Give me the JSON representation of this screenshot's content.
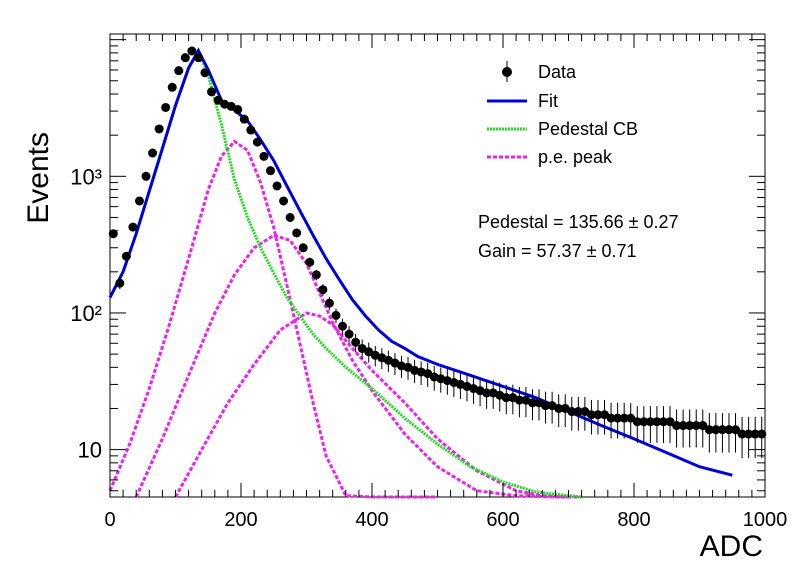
{
  "chart_data": {
    "type": "scatter",
    "xlabel": "ADC",
    "ylabel": "Events",
    "xlim": [
      0,
      1000
    ],
    "ylim": [
      4.5,
      11000
    ],
    "yscale": "log",
    "x_ticks": [
      "0",
      "200",
      "400",
      "600",
      "800",
      "1000"
    ],
    "y_ticks": [
      {
        "value": 10,
        "label": "10"
      },
      {
        "value": 100,
        "label": "10²"
      },
      {
        "value": 1000,
        "label": "10³"
      }
    ],
    "legend": {
      "placement": "top-right",
      "entries": [
        {
          "label": "Data",
          "style": "marker",
          "color": "#000000"
        },
        {
          "label": "Fit",
          "style": "solid",
          "color": "#0000dd"
        },
        {
          "label": "Pedestal CB",
          "style": "dotted",
          "color": "#22dd22"
        },
        {
          "label": "p.e. peak",
          "style": "dashed",
          "color": "#ee22ee"
        }
      ]
    },
    "annotations": [
      "Pedestal = 135.66 ± 0.27",
      "Gain = 57.37 ± 0.71"
    ],
    "data": {
      "x": [
        5,
        15,
        25,
        35,
        45,
        55,
        65,
        75,
        85,
        95,
        105,
        115,
        125,
        135,
        145,
        155,
        165,
        175,
        185,
        195,
        205,
        215,
        225,
        235,
        245,
        255,
        265,
        275,
        285,
        295,
        305,
        315,
        325,
        335,
        345,
        355,
        365,
        375,
        385,
        395,
        405,
        415,
        425,
        435,
        445,
        455,
        465,
        475,
        485,
        495,
        505,
        515,
        525,
        535,
        545,
        555,
        565,
        575,
        585,
        595,
        605,
        615,
        625,
        635,
        645,
        655,
        665,
        675,
        685,
        695,
        705,
        715,
        725,
        735,
        745,
        755,
        765,
        775,
        785,
        795,
        805,
        815,
        825,
        835,
        845,
        855,
        865,
        875,
        885,
        895,
        905,
        915,
        925,
        935,
        945,
        955,
        965,
        975,
        985,
        995
      ],
      "y": [
        380,
        165,
        260,
        425,
        660,
        1000,
        1480,
        2220,
        3190,
        4480,
        5930,
        7380,
        8260,
        7380,
        5730,
        4150,
        3600,
        3370,
        3250,
        3080,
        2620,
        2180,
        1780,
        1400,
        1100,
        850,
        660,
        500,
        385,
        300,
        235,
        190,
        148,
        118,
        96,
        80,
        70,
        61,
        55,
        52,
        49,
        47,
        45,
        43,
        41,
        40,
        38,
        37,
        36,
        34,
        33,
        32,
        31,
        30,
        29,
        28,
        27,
        26,
        26,
        25,
        24,
        24,
        23,
        23,
        22,
        22,
        21,
        21,
        20,
        20,
        19,
        19,
        19,
        18,
        18,
        18,
        17,
        17,
        17,
        17,
        16,
        16,
        16,
        16,
        16,
        16,
        15,
        15,
        15,
        15,
        15,
        14,
        14,
        14,
        14,
        14,
        13,
        13,
        13,
        13
      ],
      "err_low": [
        12,
        12,
        12,
        12,
        12,
        12,
        12,
        12,
        12,
        12,
        12,
        12,
        12,
        12,
        12,
        12,
        12,
        12,
        12,
        12,
        12,
        12,
        12,
        12,
        12,
        12,
        12,
        12,
        12,
        12,
        12,
        12,
        12,
        12,
        12,
        12,
        12,
        12,
        12,
        12,
        12,
        12,
        12,
        12,
        12,
        12,
        12,
        12,
        12,
        12,
        12,
        12,
        12,
        12,
        12,
        12,
        12,
        12,
        12,
        12,
        12,
        12,
        12,
        12,
        12,
        12,
        12,
        12,
        12,
        12,
        12,
        12,
        12,
        12,
        12,
        12,
        12,
        12,
        12,
        12,
        12,
        12,
        12,
        12,
        12,
        12,
        12,
        12,
        12,
        12,
        12,
        12,
        12,
        12,
        12,
        12,
        12,
        12,
        12,
        12
      ]
    },
    "fit_curve": {
      "x": [
        0,
        20,
        40,
        60,
        80,
        100,
        120,
        135,
        150,
        170,
        190,
        210,
        230,
        250,
        270,
        290,
        310,
        330,
        350,
        370,
        390,
        410,
        430,
        450,
        470,
        500,
        550,
        600,
        650,
        700,
        750,
        800,
        850,
        900,
        950
      ],
      "y": [
        130,
        200,
        380,
        780,
        1600,
        3300,
        6200,
        8300,
        6000,
        3600,
        3050,
        2550,
        1850,
        1300,
        850,
        560,
        370,
        250,
        175,
        125,
        95,
        75,
        62,
        55,
        48,
        42,
        35,
        29,
        24,
        19,
        15,
        12,
        9.5,
        7.5,
        6.5
      ]
    },
    "pedestal_curve": {
      "x": [
        0,
        20,
        40,
        60,
        80,
        100,
        120,
        135,
        150,
        170,
        190,
        210,
        230,
        250,
        270,
        290,
        310,
        330,
        360,
        400,
        450,
        500,
        550,
        600,
        650,
        700,
        720
      ],
      "y": [
        130,
        200,
        380,
        780,
        1600,
        3300,
        6200,
        8300,
        5500,
        2400,
        950,
        500,
        300,
        195,
        130,
        95,
        70,
        55,
        40,
        28,
        17,
        11,
        7.5,
        5.8,
        4.9,
        4.6,
        4.5
      ]
    },
    "pe_peaks": [
      {
        "x": [
          0,
          30,
          60,
          90,
          120,
          150,
          170,
          190,
          210,
          230,
          250,
          270,
          290,
          310,
          330,
          360,
          400,
          450,
          500
        ],
        "y": [
          5,
          11,
          28,
          80,
          250,
          800,
          1400,
          1800,
          1550,
          900,
          420,
          160,
          60,
          22,
          9,
          4.6,
          4.5,
          4.5,
          4.5
        ]
      },
      {
        "x": [
          40,
          80,
          120,
          160,
          190,
          220,
          250,
          275,
          300,
          320,
          340,
          370,
          400,
          450,
          500,
          560,
          620,
          680,
          720
        ],
        "y": [
          4.5,
          12,
          35,
          100,
          190,
          300,
          370,
          340,
          230,
          140,
          85,
          45,
          27,
          13,
          7.5,
          5,
          4.6,
          4.5,
          4.5
        ]
      },
      {
        "x": [
          100,
          140,
          180,
          220,
          260,
          300,
          320,
          340,
          370,
          400,
          450,
          500,
          560,
          620,
          660,
          700
        ],
        "y": [
          4.5,
          10,
          22,
          42,
          75,
          100,
          95,
          82,
          55,
          38,
          22,
          12,
          7,
          5,
          4.6,
          4.5
        ]
      }
    ]
  },
  "colors": {
    "fit": "#0000dd",
    "pedestal": "#22dd22",
    "pe": "#ee22ee",
    "data": "#000000"
  }
}
